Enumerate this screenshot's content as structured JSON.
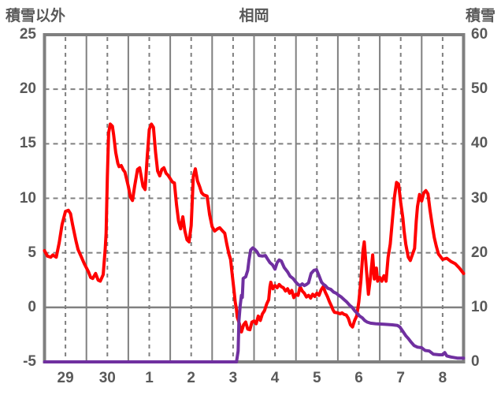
{
  "header": {
    "left_axis_title": "積雪以外",
    "title": "相岡",
    "right_axis_title": "積雪"
  },
  "chart_data": {
    "type": "line",
    "title": "相岡",
    "left_axis": {
      "label": "積雪以外",
      "min": -5,
      "max": 25,
      "ticks": [
        25,
        20,
        15,
        10,
        5,
        0,
        -5
      ]
    },
    "right_axis": {
      "label": "積雪",
      "min": 0,
      "max": 60,
      "ticks": [
        60,
        50,
        40,
        30,
        20,
        10,
        0
      ]
    },
    "x_axis": {
      "tick_labels": [
        "29",
        "30",
        "1",
        "2",
        "3",
        "4",
        "5",
        "6",
        "7",
        "8"
      ],
      "days_shown": 10
    },
    "grid": {
      "h_dashed_at_left_values": [
        20,
        15,
        10,
        5
      ],
      "h_solid_at_left_value": 0,
      "v_solid_between_days": true,
      "v_dashed_at_labels": true
    },
    "colors": {
      "series_other": "#ff0000",
      "series_snow": "#7030a0",
      "grid": "#808080",
      "frame": "#7f7f7f",
      "text": "#595959",
      "background": "#ffffff"
    },
    "series": [
      {
        "name": "積雪以外",
        "axis": "left",
        "color": "#ff0000",
        "points": [
          [
            0,
            5.2
          ],
          [
            0.07,
            4.7
          ],
          [
            0.15,
            4.6
          ],
          [
            0.2,
            4.8
          ],
          [
            0.28,
            4.6
          ],
          [
            0.35,
            5.9
          ],
          [
            0.42,
            7.6
          ],
          [
            0.5,
            8.8
          ],
          [
            0.57,
            8.9
          ],
          [
            0.62,
            8.6
          ],
          [
            0.67,
            7.6
          ],
          [
            0.75,
            6.1
          ],
          [
            0.8,
            5.3
          ],
          [
            0.87,
            4.7
          ],
          [
            0.95,
            4.0
          ],
          [
            1.05,
            3.25
          ],
          [
            1.1,
            2.75
          ],
          [
            1.15,
            2.65
          ],
          [
            1.22,
            3.1
          ],
          [
            1.28,
            2.5
          ],
          [
            1.33,
            2.4
          ],
          [
            1.4,
            3.0
          ],
          [
            1.45,
            5.4
          ],
          [
            1.47,
            6.8
          ],
          [
            1.5,
            12.0
          ],
          [
            1.53,
            16.0
          ],
          [
            1.57,
            16.8
          ],
          [
            1.62,
            16.6
          ],
          [
            1.65,
            15.8
          ],
          [
            1.7,
            14.2
          ],
          [
            1.75,
            13.2
          ],
          [
            1.78,
            12.9
          ],
          [
            1.83,
            13.0
          ],
          [
            1.88,
            12.6
          ],
          [
            1.92,
            12.4
          ],
          [
            2.0,
            11.1
          ],
          [
            2.05,
            10.1
          ],
          [
            2.1,
            9.8
          ],
          [
            2.15,
            11.1
          ],
          [
            2.22,
            12.65
          ],
          [
            2.27,
            12.8
          ],
          [
            2.35,
            11.1
          ],
          [
            2.4,
            10.8
          ],
          [
            2.45,
            13.7
          ],
          [
            2.5,
            16.3
          ],
          [
            2.55,
            16.8
          ],
          [
            2.6,
            16.5
          ],
          [
            2.65,
            14.2
          ],
          [
            2.7,
            12.5
          ],
          [
            2.75,
            12.05
          ],
          [
            2.8,
            12.65
          ],
          [
            2.85,
            12.8
          ],
          [
            2.9,
            12.3
          ],
          [
            2.95,
            12.1
          ],
          [
            3.0,
            11.8
          ],
          [
            3.05,
            11.5
          ],
          [
            3.1,
            11.4
          ],
          [
            3.15,
            9.4
          ],
          [
            3.2,
            7.9
          ],
          [
            3.25,
            7.2
          ],
          [
            3.3,
            8.3
          ],
          [
            3.35,
            7.0
          ],
          [
            3.4,
            6.2
          ],
          [
            3.45,
            6.0
          ],
          [
            3.5,
            7.5
          ],
          [
            3.55,
            12.0
          ],
          [
            3.6,
            12.7
          ],
          [
            3.65,
            11.6
          ],
          [
            3.7,
            11.1
          ],
          [
            3.75,
            10.5
          ],
          [
            3.8,
            10.3
          ],
          [
            3.88,
            10.2
          ],
          [
            3.94,
            8.5
          ],
          [
            4.0,
            7.4
          ],
          [
            4.06,
            7.0
          ],
          [
            4.13,
            7.2
          ],
          [
            4.18,
            7.3
          ],
          [
            4.25,
            7.0
          ],
          [
            4.3,
            6.8
          ],
          [
            4.35,
            5.8
          ],
          [
            4.4,
            4.9
          ],
          [
            4.44,
            4.4
          ],
          [
            4.48,
            3.0
          ],
          [
            4.52,
            1.6
          ],
          [
            4.55,
            0.5
          ],
          [
            4.58,
            -0.2
          ],
          [
            4.6,
            -0.9
          ],
          [
            4.65,
            -1.5
          ],
          [
            4.68,
            -2.1
          ],
          [
            4.7,
            -2.25
          ],
          [
            4.75,
            -1.6
          ],
          [
            4.8,
            -1.35
          ],
          [
            4.85,
            -2.0
          ],
          [
            4.9,
            -2.05
          ],
          [
            4.95,
            -1.35
          ],
          [
            5.0,
            -1.25
          ],
          [
            5.05,
            -1.5
          ],
          [
            5.1,
            -0.8
          ],
          [
            5.15,
            -1.2
          ],
          [
            5.2,
            -0.6
          ],
          [
            5.25,
            -0.3
          ],
          [
            5.3,
            0.3
          ],
          [
            5.35,
            0.7
          ],
          [
            5.38,
            1.9
          ],
          [
            5.4,
            2.3
          ],
          [
            5.45,
            1.7
          ],
          [
            5.5,
            2.0
          ],
          [
            5.55,
            1.8
          ],
          [
            5.6,
            2.1
          ],
          [
            5.65,
            1.9
          ],
          [
            5.7,
            1.8
          ],
          [
            5.75,
            1.5
          ],
          [
            5.8,
            1.7
          ],
          [
            5.85,
            1.3
          ],
          [
            5.9,
            1.55
          ],
          [
            5.95,
            0.9
          ],
          [
            6.0,
            1.2
          ],
          [
            6.05,
            1.1
          ],
          [
            6.1,
            1.9
          ],
          [
            6.15,
            1.5
          ],
          [
            6.2,
            1.3
          ],
          [
            6.25,
            0.95
          ],
          [
            6.3,
            1.1
          ],
          [
            6.35,
            0.85
          ],
          [
            6.4,
            1.2
          ],
          [
            6.45,
            1.0
          ],
          [
            6.5,
            1.3
          ],
          [
            6.55,
            1.1
          ],
          [
            6.6,
            1.6
          ],
          [
            6.65,
            1.9
          ],
          [
            6.7,
            1.4
          ],
          [
            6.75,
            1.0
          ],
          [
            6.8,
            0.5
          ],
          [
            6.85,
            0.1
          ],
          [
            6.88,
            -0.2
          ],
          [
            6.92,
            -0.45
          ],
          [
            7.0,
            -0.5
          ],
          [
            7.05,
            -0.6
          ],
          [
            7.1,
            -0.5
          ],
          [
            7.15,
            -0.65
          ],
          [
            7.2,
            -0.7
          ],
          [
            7.25,
            -1.0
          ],
          [
            7.3,
            -1.6
          ],
          [
            7.35,
            -1.8
          ],
          [
            7.4,
            -1.2
          ],
          [
            7.45,
            -0.8
          ],
          [
            7.5,
            0.5
          ],
          [
            7.55,
            2.5
          ],
          [
            7.6,
            5.2
          ],
          [
            7.63,
            6.0
          ],
          [
            7.68,
            3.5
          ],
          [
            7.73,
            1.2
          ],
          [
            7.78,
            2.8
          ],
          [
            7.83,
            4.8
          ],
          [
            7.87,
            2.6
          ],
          [
            7.92,
            3.6
          ],
          [
            7.95,
            2.4
          ],
          [
            8.0,
            2.75
          ],
          [
            8.05,
            2.4
          ],
          [
            8.1,
            2.9
          ],
          [
            8.15,
            2.4
          ],
          [
            8.2,
            4.6
          ],
          [
            8.25,
            5.8
          ],
          [
            8.3,
            8.0
          ],
          [
            8.35,
            10.1
          ],
          [
            8.4,
            11.45
          ],
          [
            8.45,
            11.3
          ],
          [
            8.5,
            9.6
          ],
          [
            8.55,
            8.2
          ],
          [
            8.58,
            7.0
          ],
          [
            8.62,
            5.8
          ],
          [
            8.68,
            4.6
          ],
          [
            8.73,
            4.3
          ],
          [
            8.78,
            4.85
          ],
          [
            8.83,
            5.4
          ],
          [
            8.87,
            7.9
          ],
          [
            8.9,
            9.25
          ],
          [
            8.95,
            10.35
          ],
          [
            9.0,
            9.75
          ],
          [
            9.05,
            10.5
          ],
          [
            9.1,
            10.7
          ],
          [
            9.15,
            10.4
          ],
          [
            9.2,
            8.9
          ],
          [
            9.25,
            7.6
          ],
          [
            9.3,
            6.4
          ],
          [
            9.35,
            5.6
          ],
          [
            9.4,
            4.9
          ],
          [
            9.5,
            4.4
          ],
          [
            9.6,
            4.5
          ],
          [
            9.7,
            4.2
          ],
          [
            9.8,
            4.0
          ],
          [
            9.9,
            3.6
          ],
          [
            10.0,
            3.1
          ]
        ]
      },
      {
        "name": "積雪",
        "axis": "right",
        "color": "#7030a0",
        "points": [
          [
            0,
            0
          ],
          [
            4.58,
            0
          ],
          [
            4.62,
            2
          ],
          [
            4.64,
            7.5
          ],
          [
            4.67,
            10.3
          ],
          [
            4.7,
            12.2
          ],
          [
            4.72,
            11.8
          ],
          [
            4.74,
            15.3
          ],
          [
            4.8,
            15.6
          ],
          [
            4.85,
            16.8
          ],
          [
            4.88,
            18.7
          ],
          [
            4.92,
            20.5
          ],
          [
            4.97,
            20.9
          ],
          [
            5.02,
            20.6
          ],
          [
            5.07,
            20.2
          ],
          [
            5.12,
            19.5
          ],
          [
            5.2,
            19.4
          ],
          [
            5.27,
            19.5
          ],
          [
            5.32,
            18.9
          ],
          [
            5.38,
            18.2
          ],
          [
            5.44,
            17.8
          ],
          [
            5.5,
            17.0
          ],
          [
            5.55,
            18.2
          ],
          [
            5.6,
            18.7
          ],
          [
            5.65,
            18.5
          ],
          [
            5.72,
            17.3
          ],
          [
            5.8,
            16.5
          ],
          [
            5.86,
            15.7
          ],
          [
            5.93,
            15.3
          ],
          [
            6.0,
            14.6
          ],
          [
            6.05,
            14.2
          ],
          [
            6.1,
            14.0
          ],
          [
            6.15,
            14.3
          ],
          [
            6.2,
            14.0
          ],
          [
            6.25,
            14.2
          ],
          [
            6.3,
            14.5
          ],
          [
            6.36,
            16.2
          ],
          [
            6.43,
            16.8
          ],
          [
            6.49,
            16.9
          ],
          [
            6.55,
            15.8
          ],
          [
            6.61,
            14.6
          ],
          [
            6.66,
            14.2
          ],
          [
            6.7,
            14.0
          ],
          [
            6.76,
            13.5
          ],
          [
            6.83,
            13.3
          ],
          [
            6.9,
            12.8
          ],
          [
            6.96,
            12.6
          ],
          [
            7.02,
            12.2
          ],
          [
            7.08,
            11.9
          ],
          [
            7.15,
            11.4
          ],
          [
            7.21,
            11.0
          ],
          [
            7.28,
            10.4
          ],
          [
            7.34,
            10.0
          ],
          [
            7.4,
            9.4
          ],
          [
            7.45,
            9.0
          ],
          [
            7.52,
            8.4
          ],
          [
            7.58,
            8.1
          ],
          [
            7.64,
            7.6
          ],
          [
            7.7,
            7.3
          ],
          [
            7.78,
            7.1
          ],
          [
            7.9,
            7.0
          ],
          [
            8.1,
            6.9
          ],
          [
            8.3,
            6.8
          ],
          [
            8.42,
            6.7
          ],
          [
            8.48,
            6.4
          ],
          [
            8.55,
            5.6
          ],
          [
            8.62,
            4.8
          ],
          [
            8.68,
            4.3
          ],
          [
            8.75,
            3.6
          ],
          [
            8.82,
            3.0
          ],
          [
            8.9,
            2.7
          ],
          [
            9.0,
            2.6
          ],
          [
            9.08,
            2.1
          ],
          [
            9.18,
            2.0
          ],
          [
            9.28,
            1.4
          ],
          [
            9.42,
            1.3
          ],
          [
            9.5,
            1.3
          ],
          [
            9.55,
            1.7
          ],
          [
            9.6,
            1.1
          ],
          [
            9.7,
            0.9
          ],
          [
            9.85,
            0.7
          ],
          [
            10.0,
            0.7
          ]
        ]
      }
    ]
  }
}
